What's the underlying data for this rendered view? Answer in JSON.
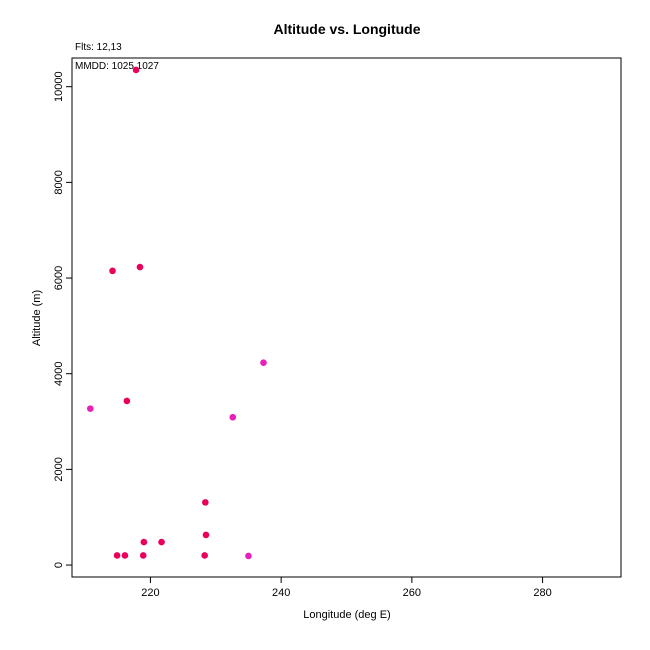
{
  "chart_data": {
    "type": "scatter",
    "title": "Altitude vs. Longitude",
    "xlabel": "Longitude (deg E)",
    "ylabel": "Altitude (m)",
    "annotations": [
      "Flts: 12,13",
      "MMDD: 1025,1027"
    ],
    "xlim": [
      208,
      292
    ],
    "ylim": [
      -250,
      10600
    ],
    "x_ticks": [
      220,
      240,
      260,
      280
    ],
    "y_ticks": [
      0,
      2000,
      4000,
      6000,
      8000,
      10000
    ],
    "grid": false,
    "colors": {
      "series_a": "#e8005a",
      "series_b": "#e81fba"
    },
    "series": [
      {
        "color": "#e8005a",
        "points": [
          {
            "x": 217.8,
            "y": 10350
          },
          {
            "x": 214.2,
            "y": 6150
          },
          {
            "x": 218.4,
            "y": 6230
          },
          {
            "x": 216.4,
            "y": 3430
          },
          {
            "x": 228.4,
            "y": 1310
          },
          {
            "x": 228.5,
            "y": 630
          },
          {
            "x": 219.0,
            "y": 480
          },
          {
            "x": 221.7,
            "y": 480
          },
          {
            "x": 214.9,
            "y": 200
          },
          {
            "x": 216.1,
            "y": 200
          },
          {
            "x": 218.9,
            "y": 200
          },
          {
            "x": 228.3,
            "y": 200
          }
        ]
      },
      {
        "color": "#e81fba",
        "points": [
          {
            "x": 237.3,
            "y": 4230
          },
          {
            "x": 210.8,
            "y": 3270
          },
          {
            "x": 232.6,
            "y": 3090
          },
          {
            "x": 235.0,
            "y": 190
          }
        ]
      }
    ]
  }
}
